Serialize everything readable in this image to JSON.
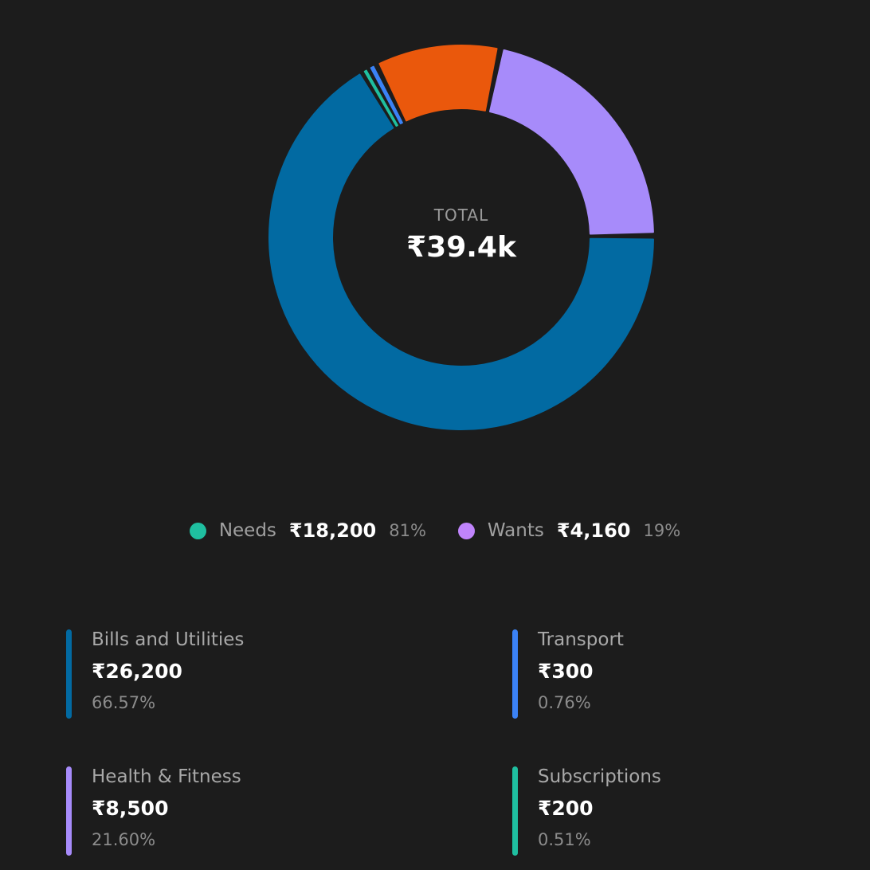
{
  "center": {
    "title": "TOTAL",
    "value": "₹39.4k"
  },
  "groups": [
    {
      "name": "Needs",
      "amount": "₹18,200",
      "pct": "81%",
      "color": "#1fbfa0"
    },
    {
      "name": "Wants",
      "amount": "₹4,160",
      "pct": "19%",
      "color": "#c084fc"
    }
  ],
  "categories": [
    {
      "name": "Bills and Utilities",
      "amount": "₹26,200",
      "pct": "66.57%",
      "color": "#026aa2"
    },
    {
      "name": "Transport",
      "amount": "₹300",
      "pct": "0.76%",
      "color": "#3b82f6"
    },
    {
      "name": "Health & Fitness",
      "amount": "₹8,500",
      "pct": "21.60%",
      "color": "#a78bfa"
    },
    {
      "name": "Subscriptions",
      "amount": "₹200",
      "pct": "0.51%",
      "color": "#1fbfa0"
    }
  ],
  "chart_data": {
    "type": "pie",
    "title": "",
    "slices": [
      {
        "label": "Bills and Utilities",
        "value": 66.57,
        "color": "#026aa2"
      },
      {
        "label": "Subscriptions",
        "value": 0.51,
        "color": "#1fbfa0"
      },
      {
        "label": "Transport",
        "value": 0.76,
        "color": "#3b82f6"
      },
      {
        "label": "",
        "value": 10.56,
        "color": "#ea580c"
      },
      {
        "label": "Health & Fitness",
        "value": 21.6,
        "color": "#a78bfa"
      }
    ]
  }
}
